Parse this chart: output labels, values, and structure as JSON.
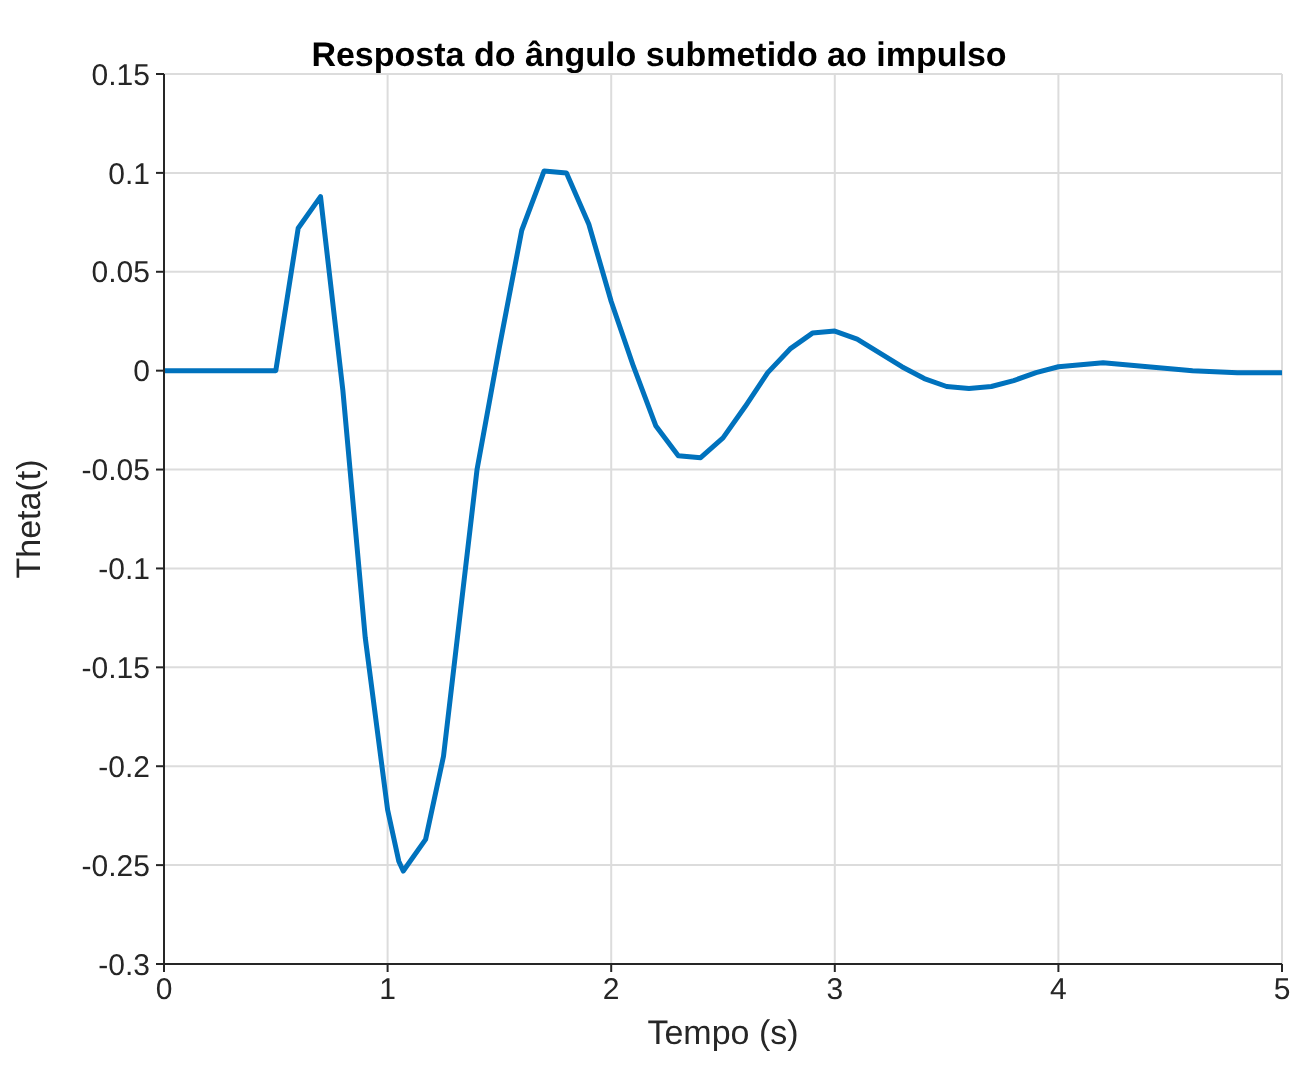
{
  "chart_data": {
    "type": "line",
    "title": "Resposta do ângulo submetido ao impulso",
    "xlabel": "Tempo (s)",
    "ylabel": "Theta(t)",
    "xlim": [
      0,
      5
    ],
    "xticks": [
      0,
      1,
      2,
      3,
      4,
      5
    ],
    "ylim": [
      -0.3,
      0.15
    ],
    "yticks": [
      -0.3,
      -0.25,
      -0.2,
      -0.15,
      -0.1,
      -0.05,
      0,
      0.05,
      0.1,
      0.15
    ],
    "grid": true,
    "series": [
      {
        "color": "#0072bd",
        "x": [
          0,
          0.5,
          0.6,
          0.7,
          0.8,
          0.9,
          1.0,
          1.05,
          1.07,
          1.17,
          1.25,
          1.4,
          1.5,
          1.6,
          1.7,
          1.8,
          1.9,
          2.0,
          2.1,
          2.2,
          2.3,
          2.4,
          2.5,
          2.6,
          2.7,
          2.8,
          2.9,
          3.0,
          3.1,
          3.2,
          3.3,
          3.4,
          3.5,
          3.6,
          3.7,
          3.8,
          3.9,
          4.0,
          4.1,
          4.2,
          4.3,
          4.4,
          4.6,
          4.8,
          5.0
        ],
        "values": [
          0,
          0,
          0.072,
          0.088,
          -0.01,
          -0.135,
          -0.222,
          -0.248,
          -0.253,
          -0.237,
          -0.195,
          -0.05,
          0.012,
          0.071,
          0.101,
          0.1,
          0.074,
          0.035,
          0.002,
          -0.028,
          -0.043,
          -0.044,
          -0.034,
          -0.018,
          -0.001,
          0.011,
          0.019,
          0.02,
          0.016,
          0.009,
          0.002,
          -0.004,
          -0.008,
          -0.009,
          -0.008,
          -0.005,
          -0.001,
          0.002,
          0.003,
          0.004,
          0.003,
          0.002,
          0,
          -0.001,
          -0.001
        ]
      }
    ]
  }
}
